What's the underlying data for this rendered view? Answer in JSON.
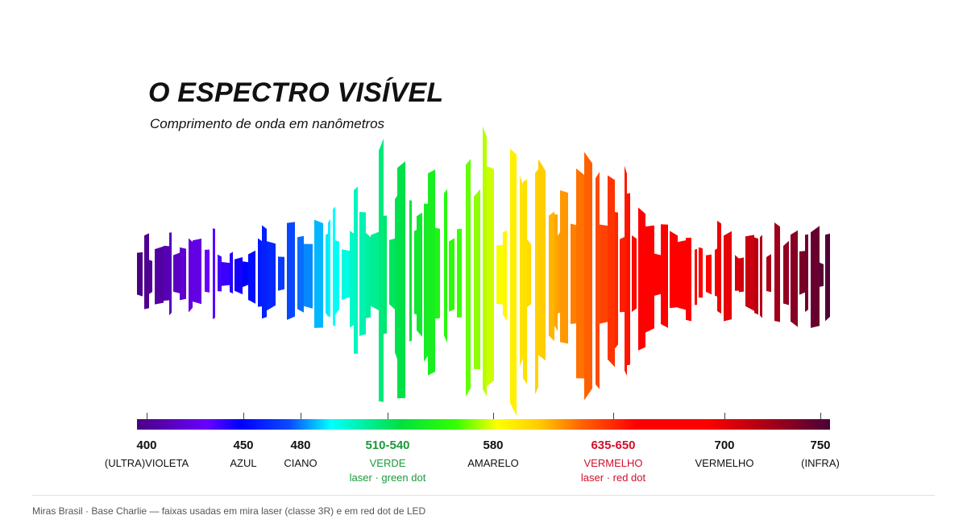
{
  "header": {
    "title": "O ESPECTRO VISÍVEL",
    "subtitle": "Comprimento de onda em nanômetros"
  },
  "diagram": {
    "range_nm": [
      400,
      750
    ],
    "labels": [
      {
        "nm": "400",
        "band": "(ULTRA)VIOLETA",
        "use": ""
      },
      {
        "nm": "450",
        "band": "AZUL",
        "use": ""
      },
      {
        "nm": "480",
        "band": "CIANO",
        "use": ""
      },
      {
        "nm": "510-540",
        "band": "VERDE",
        "use": "laser · green dot",
        "accent": "#1a9a3a"
      },
      {
        "nm": "580",
        "band": "AMARELO",
        "use": ""
      },
      {
        "nm": "635-650",
        "band": "VERMELHO",
        "use": "laser · red dot",
        "accent": "#d0102a"
      },
      {
        "nm": "700",
        "band": "VERMELHO",
        "use": ""
      },
      {
        "nm": "750",
        "band": "(INFRA)",
        "use": ""
      }
    ],
    "colors": {
      "violet": "#6a00ff",
      "blue": "#0000ff",
      "cyan": "#00ffff",
      "green": "#00e040",
      "yellow": "#ffff00",
      "orange": "#ff8800",
      "red": "#ff0000",
      "infra": "#4a003a"
    }
  },
  "footer": {
    "note": "Miras Brasil · Base Charlie — faixas usadas em mira laser (classe 3R) e em red dot de LED"
  }
}
